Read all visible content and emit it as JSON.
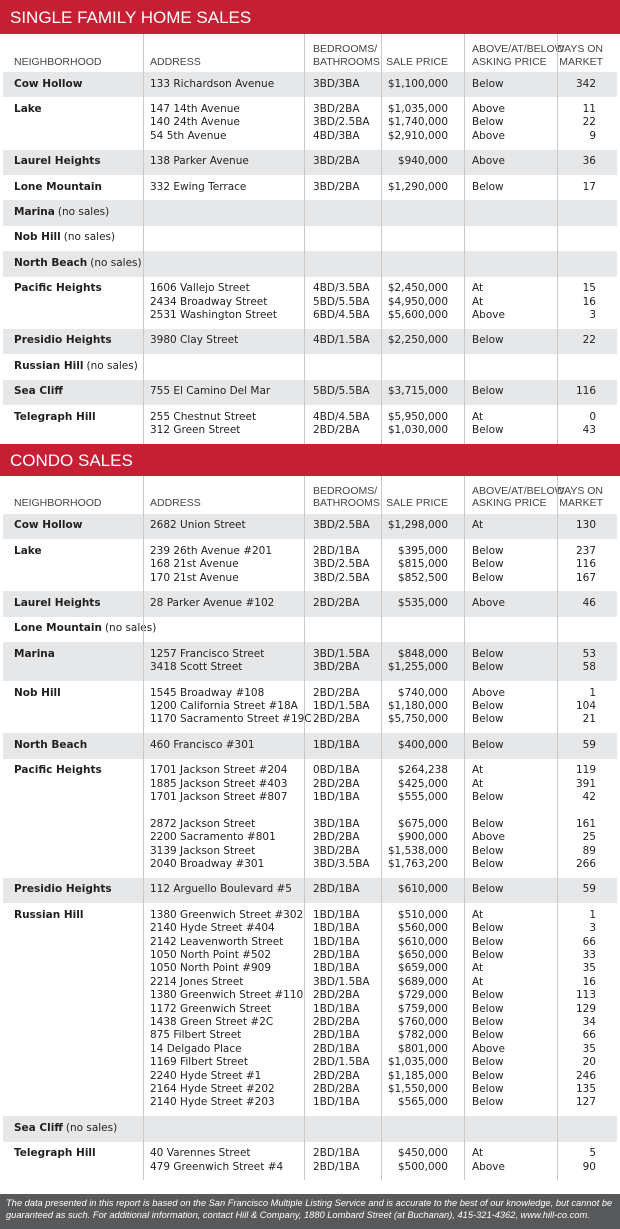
{
  "sections": [
    {
      "title": "SINGLE FAMILY HOME SALES",
      "header": [
        [
          "NEIGHBORHOOD"
        ],
        [
          "ADDRESS"
        ],
        [
          "BEDROOMS/",
          "BATHROOMS"
        ],
        [
          "SALE PRICE"
        ],
        [
          "ABOVE/AT/BELOW",
          "ASKING PRICE"
        ],
        [
          "DAYS ON",
          "MARKET"
        ]
      ],
      "groups": [
        {
          "name": "Cow Hollow",
          "rows": [
            [
              "133 Richardson Avenue",
              "3BD/3BA",
              "$1,100,000",
              "Below",
              342
            ]
          ]
        },
        {
          "name": "Lake",
          "rows": [
            [
              "147 14th Avenue",
              "3BD/2BA",
              "$1,035,000",
              "Above",
              11
            ],
            [
              "140 24th Avenue",
              "3BD/2.5BA",
              "$1,740,000",
              "Below",
              22
            ],
            [
              "54 5th Avenue",
              "4BD/3BA",
              "$2,910,000",
              "Above",
              9
            ]
          ]
        },
        {
          "name": "Laurel Heights",
          "rows": [
            [
              "138 Parker Avenue",
              "3BD/2BA",
              "$940,000",
              "Above",
              36
            ]
          ]
        },
        {
          "name": "Lone Mountain",
          "rows": [
            [
              "332 Ewing Terrace",
              "3BD/2BA",
              "$1,290,000",
              "Below",
              17
            ]
          ]
        },
        {
          "name": "Marina",
          "note": "(no sales)",
          "rows": []
        },
        {
          "name": "Nob Hill",
          "note": "(no sales)",
          "rows": []
        },
        {
          "name": "North Beach",
          "note": "(no sales)",
          "rows": []
        },
        {
          "name": "Pacific Heights",
          "rows": [
            [
              "1606 Vallejo Street",
              "4BD/3.5BA",
              "$2,450,000",
              "At",
              15
            ],
            [
              "2434 Broadway Street",
              "5BD/5.5BA",
              "$4,950,000",
              "At",
              16
            ],
            [
              "2531 Washington Street",
              "6BD/4.5BA",
              "$5,600,000",
              "Above",
              3
            ]
          ]
        },
        {
          "name": "Presidio Heights",
          "rows": [
            [
              "3980 Clay Street",
              "4BD/1.5BA",
              "$2,250,000",
              "Below",
              22
            ]
          ]
        },
        {
          "name": "Russian Hill",
          "note": "(no sales)",
          "rows": []
        },
        {
          "name": "Sea Cliff",
          "rows": [
            [
              "755 El Camino Del Mar",
              "5BD/5.5BA",
              "$3,715,000",
              "Below",
              116
            ]
          ]
        },
        {
          "name": "Telegraph Hill",
          "rows": [
            [
              "255 Chestnut Street",
              "4BD/4.5BA",
              "$5,950,000",
              "At",
              0
            ],
            [
              "312 Green Street",
              "2BD/2BA",
              "$1,030,000",
              "Below",
              43
            ]
          ]
        }
      ]
    },
    {
      "title": "CONDO SALES",
      "header": [
        [
          "NEIGHBORHOOD"
        ],
        [
          "ADDRESS"
        ],
        [
          "BEDROOMS/",
          "BATHROOMS"
        ],
        [
          "SALE PRICE"
        ],
        [
          "ABOVE/AT/BELOW",
          "ASKING PRICE"
        ],
        [
          "DAYS ON",
          "MARKET"
        ]
      ],
      "groups": [
        {
          "name": "Cow Hollow",
          "rows": [
            [
              "2682 Union Street",
              "3BD/2.5BA",
              "$1,298,000",
              "At",
              130
            ]
          ]
        },
        {
          "name": "Lake",
          "rows": [
            [
              "239 26th Avenue #201",
              "2BD/1BA",
              "$395,000",
              "Below",
              237
            ],
            [
              "168 21st Avenue",
              "3BD/2.5BA",
              "$815,000",
              "Below",
              116
            ],
            [
              "170 21st Avenue",
              "3BD/2.5BA",
              "$852,500",
              "Below",
              167
            ]
          ]
        },
        {
          "name": "Laurel Heights",
          "rows": [
            [
              "28 Parker Avenue #102",
              "2BD/2BA",
              "$535,000",
              "Above",
              46
            ]
          ]
        },
        {
          "name": "Lone Mountain",
          "note": "(no sales)",
          "rows": []
        },
        {
          "name": "Marina",
          "rows": [
            [
              "1257 Francisco Street",
              "3BD/1.5BA",
              "$848,000",
              "Below",
              53
            ],
            [
              "3418 Scott Street",
              "3BD/2BA",
              "$1,255,000",
              "Below",
              58
            ]
          ]
        },
        {
          "name": "Nob Hill",
          "rows": [
            [
              "1545 Broadway #108",
              "2BD/2BA",
              "$740,000",
              "Above",
              1
            ],
            [
              "1200 California Street #18A",
              "1BD/1.5BA",
              "$1,180,000",
              "Below",
              104
            ],
            [
              "1170 Sacramento Street #19C",
              "2BD/2BA",
              "$5,750,000",
              "Below",
              21
            ]
          ]
        },
        {
          "name": "North Beach",
          "rows": [
            [
              "460 Francisco #301",
              "1BD/1BA",
              "$400,000",
              "Below",
              59
            ]
          ]
        },
        {
          "name": "Pacific Heights",
          "rows": [
            [
              "1701 Jackson Street #204",
              "0BD/1BA",
              "$264,238",
              "At",
              119
            ],
            [
              "1885 Jackson Street #403",
              "2BD/2BA",
              "$425,000",
              "At",
              391
            ],
            [
              "1701 Jackson Street #807",
              "1BD/1BA",
              "$555,000",
              "Below",
              42
            ],
            null,
            [
              "2872 Jackson Street",
              "3BD/1BA",
              "$675,000",
              "Below",
              161
            ],
            [
              "2200 Sacramento #801",
              "2BD/2BA",
              "$900,000",
              "Above",
              25
            ],
            [
              "3139 Jackson Street",
              "3BD/2BA",
              "$1,538,000",
              "Below",
              89
            ],
            [
              "2040 Broadway #301",
              "3BD/3.5BA",
              "$1,763,200",
              "Below",
              266
            ]
          ]
        },
        {
          "name": "Presidio Heights",
          "rows": [
            [
              "112 Arguello Boulevard #5",
              "2BD/1BA",
              "$610,000",
              "Below",
              59
            ]
          ]
        },
        {
          "name": "Russian Hill",
          "rows": [
            [
              "1380 Greenwich Street #302",
              "1BD/1BA",
              "$510,000",
              "At",
              1
            ],
            [
              "2140 Hyde Street #404",
              "1BD/1BA",
              "$560,000",
              "Below",
              3
            ],
            [
              "2142 Leavenworth Street",
              "1BD/1BA",
              "$610,000",
              "Below",
              66
            ],
            [
              "1050 North Point #502",
              "2BD/1BA",
              "$650,000",
              "Below",
              33
            ],
            [
              "1050 North Point #909",
              "1BD/1BA",
              "$659,000",
              "At",
              35
            ],
            [
              "2214 Jones Street",
              "3BD/1.5BA",
              "$689,000",
              "At",
              16
            ],
            [
              "1380 Greenwich Street #110",
              "2BD/2BA",
              "$729,000",
              "Below",
              113
            ],
            [
              "1172 Greenwich Street",
              "1BD/1BA",
              "$759,000",
              "Below",
              129
            ],
            [
              "1438 Green Street #2C",
              "2BD/2BA",
              "$760,000",
              "Below",
              34
            ],
            [
              "875 Filbert Street",
              "2BD/1BA",
              "$782,000",
              "Below",
              66
            ],
            [
              "14 Delgado Place",
              "2BD/1BA",
              "$801,000",
              "Above",
              35
            ],
            [
              "1169 Filbert Street",
              "2BD/1.5BA",
              "$1,035,000",
              "Below",
              20
            ],
            [
              "2240 Hyde Street #1",
              "2BD/2BA",
              "$1,185,000",
              "Below",
              246
            ],
            [
              "2164 Hyde Street #202",
              "2BD/2BA",
              "$1,550,000",
              "Below",
              135
            ],
            [
              "2140 Hyde Street #203",
              "1BD/1BA",
              "$565,000",
              "Below",
              127
            ]
          ]
        },
        {
          "name": "Sea Cliff",
          "note": "(no sales)",
          "rows": []
        },
        {
          "name": "Telegraph Hill",
          "rows": [
            [
              "40 Varennes Street",
              "2BD/1BA",
              "$450,000",
              "At",
              5
            ],
            [
              "479 Greenwich Street #4",
              "2BD/1BA",
              "$500,000",
              "Above",
              90
            ]
          ]
        }
      ]
    }
  ],
  "footer": "The data presented in this report is based on the San Francisco Multiple Listing Service and is accurate to the best of our knowledge, but cannot be guaranteed as such. For additional information, contact Hill & Company, 1880 Lombard Street (at Buchanan), 415-321-4362, www.hill-co.com."
}
